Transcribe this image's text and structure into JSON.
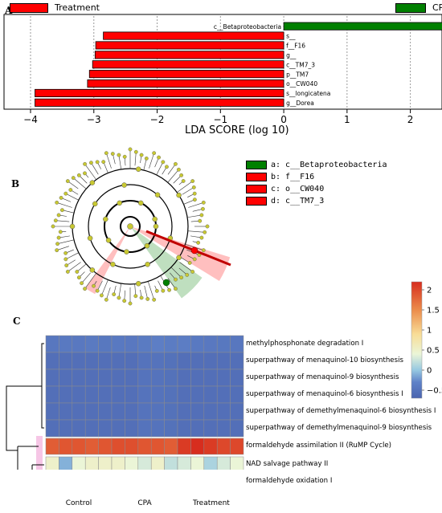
{
  "panels": {
    "a": "A",
    "b": "B",
    "c": "C"
  },
  "colors": {
    "treatment": "#ff0000",
    "cpa": "#008000",
    "grid": "#9a9a9a",
    "node": "#c8c832"
  },
  "legend": {
    "treatment": "Treatment",
    "cpa": "CPA"
  },
  "cladogram_legend": [
    {
      "label": "a: c__Betaproteobacteria",
      "color": "#008000"
    },
    {
      "label": "b: f__F16",
      "color": "#ff0000"
    },
    {
      "label": "c: o__CW040",
      "color": "#ff0000"
    },
    {
      "label": "d: c__TM7_3",
      "color": "#ff0000"
    }
  ],
  "chart_data": [
    {
      "type": "bar",
      "orientation": "horizontal",
      "xlabel": "LDA SCORE (log 10)",
      "xlim": [
        -4,
        2.5
      ],
      "xticks": [
        -4,
        -3,
        -2,
        -1,
        0,
        1,
        2
      ],
      "grid": true,
      "series": [
        {
          "name": "CPA",
          "categories": [
            "c__Betaproteobacteria"
          ],
          "values": [
            2.6
          ]
        },
        {
          "name": "Treatment",
          "categories": [
            "s__",
            "f__F16",
            "g__",
            "c__TM7_3",
            "p__TM7",
            "o__CW040",
            "s__longicatena",
            "g__Dorea"
          ],
          "values": [
            -2.85,
            -2.97,
            -2.98,
            -3.02,
            -3.07,
            -3.1,
            -3.93,
            -3.93
          ]
        }
      ]
    },
    {
      "type": "heatmap",
      "rows": [
        "methylphosphonate degradation I",
        "superpathway of menaquinol-10 biosynthesis",
        "superpathway of menaquinol-9 biosynthesis",
        "superpathway of menaquinol-6 biosynthesis I",
        "superpathway of demethylmenaquinol-6 biosynthesis I",
        "superpathway of demethylmenaquinol-9 biosynthesis",
        "formaldehyde assimilation II (RuMP Cycle)",
        "NAD salvage pathway II",
        "formaldehyde oxidation I"
      ],
      "groups": [
        {
          "name": "Control",
          "columns": 5,
          "color": "#bdbdbd"
        },
        {
          "name": "CPA",
          "columns": 5,
          "color": "#3cb44b"
        },
        {
          "name": "Treatment",
          "columns": 5,
          "color": "#e03030"
        }
      ],
      "colorbar": {
        "min": -0.7,
        "max": 2.2,
        "ticks": [
          -0.5,
          0,
          0.5,
          1,
          1.5,
          2
        ]
      },
      "values": [
        [
          -0.45,
          -0.42,
          -0.43,
          -0.41,
          -0.44,
          -0.42,
          -0.43,
          -0.4,
          -0.35,
          -0.38,
          -0.37,
          -0.42,
          -0.43,
          -0.44,
          -0.45
        ],
        [
          -0.55,
          -0.55,
          -0.55,
          -0.55,
          -0.55,
          -0.55,
          -0.55,
          -0.5,
          -0.5,
          -0.52,
          -0.55,
          -0.55,
          -0.55,
          -0.55,
          -0.55
        ],
        [
          -0.55,
          -0.55,
          -0.55,
          -0.55,
          -0.55,
          -0.55,
          -0.55,
          -0.5,
          -0.5,
          -0.52,
          -0.55,
          -0.55,
          -0.55,
          -0.55,
          -0.55
        ],
        [
          -0.55,
          -0.55,
          -0.55,
          -0.55,
          -0.55,
          -0.55,
          -0.55,
          -0.5,
          -0.5,
          -0.52,
          -0.55,
          -0.55,
          -0.55,
          -0.55,
          -0.55
        ],
        [
          -0.55,
          -0.55,
          -0.55,
          -0.55,
          -0.55,
          -0.55,
          -0.55,
          -0.5,
          -0.5,
          -0.52,
          -0.55,
          -0.55,
          -0.55,
          -0.55,
          -0.55
        ],
        [
          -0.55,
          -0.55,
          -0.55,
          -0.55,
          -0.55,
          -0.55,
          -0.55,
          -0.5,
          -0.5,
          -0.52,
          -0.55,
          -0.55,
          -0.55,
          -0.55,
          -0.55
        ],
        [
          1.85,
          1.9,
          1.9,
          1.85,
          1.9,
          1.95,
          1.95,
          1.9,
          1.9,
          1.85,
          2.1,
          2.2,
          2.1,
          2.0,
          2.0
        ],
        [
          0.5,
          -0.1,
          0.4,
          0.5,
          0.5,
          0.5,
          0.4,
          0.3,
          0.5,
          0.2,
          0.3,
          0.4,
          0.1,
          0.3,
          0.4
        ],
        [
          0.8,
          0.9,
          0.85,
          0.8,
          0.85,
          0.75,
          0.8,
          0.85,
          0.75,
          0.7,
          0.8,
          0.7,
          0.75,
          0.8,
          0.8
        ]
      ]
    }
  ]
}
